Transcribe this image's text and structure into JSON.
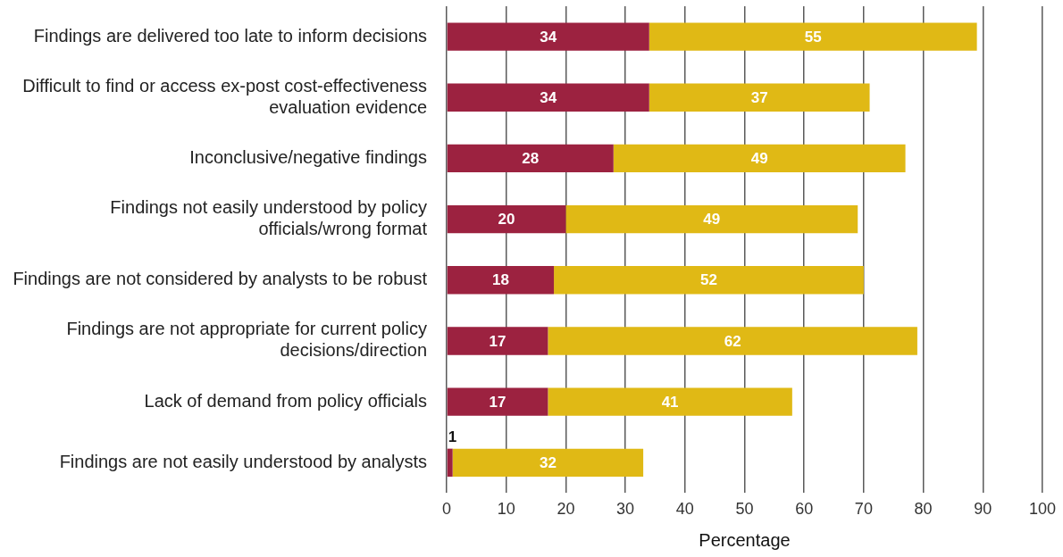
{
  "chart_data": {
    "type": "bar",
    "orientation": "horizontal",
    "stacked": true,
    "categories": [
      "Findings are delivered too late to inform decisions",
      "Difficult to find or access ex-post cost-effectiveness evaluation evidence",
      "Inconclusive/negative findings",
      "Findings not easily understood by policy officials/wrong format",
      "Findings are not considered by analysts to be robust",
      "Findings are not appropriate for current policy decisions/direction",
      "Lack of demand from policy officials",
      "Findings are not easily understood by analysts"
    ],
    "series": [
      {
        "color": "#9c2240",
        "values": [
          34,
          34,
          28,
          20,
          18,
          17,
          17,
          1
        ]
      },
      {
        "color": "#e0b915",
        "values": [
          55,
          37,
          49,
          49,
          52,
          62,
          41,
          32
        ]
      }
    ],
    "xlabel": "Percentage",
    "xlim": [
      0,
      100
    ],
    "xticks": [
      0,
      10,
      20,
      30,
      40,
      50,
      60,
      70,
      80,
      90,
      100
    ],
    "grid": "x",
    "data_labels": true
  }
}
